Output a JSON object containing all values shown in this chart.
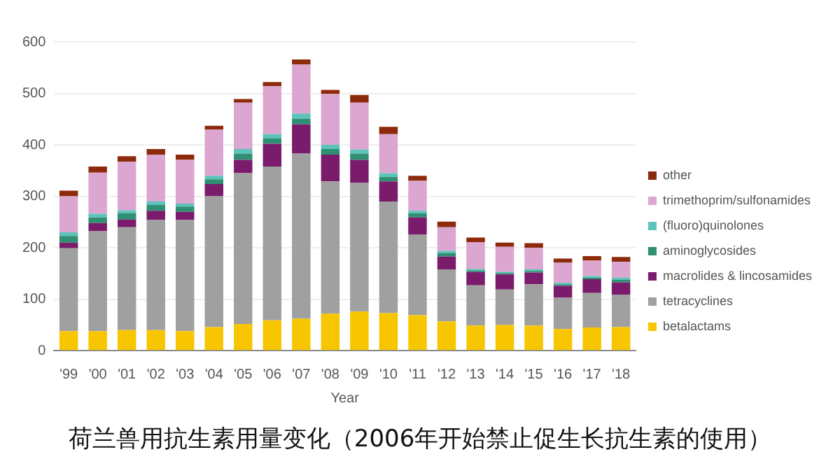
{
  "chart_data": {
    "type": "bar",
    "title": "荷兰兽用抗生素用量变化（2006年开始禁止促生长抗生素的使用）",
    "xlabel": "Year",
    "categories": [
      "'99",
      "'00",
      "'01",
      "'02",
      "'03",
      "'04",
      "'05",
      "'06",
      "'07",
      "'08",
      "'09",
      "'10",
      "'11",
      "'12",
      "'13",
      "'14",
      "'15",
      "'16",
      "'17",
      "'18"
    ],
    "stacked": true,
    "ylim": [
      0,
      600
    ],
    "yticks": [
      0,
      100,
      200,
      300,
      400,
      500,
      600
    ],
    "grid": "y",
    "legend": "right",
    "series": [
      {
        "name": "betalactams",
        "color": "#f7c600",
        "values": [
          38,
          38,
          40,
          40,
          38,
          46,
          52,
          59,
          62,
          72,
          76,
          73,
          69,
          57,
          49,
          50,
          49,
          42,
          45,
          46
        ]
      },
      {
        "name": "tetracyclines",
        "color": "#a0a0a0",
        "values": [
          161,
          194,
          200,
          214,
          216,
          254,
          293,
          299,
          321,
          257,
          250,
          217,
          157,
          101,
          78,
          69,
          80,
          61,
          67,
          63
        ]
      },
      {
        "name": "macrolides & lincosamides",
        "color": "#7a1b6c",
        "values": [
          11,
          16,
          15,
          18,
          16,
          24,
          26,
          44,
          57,
          52,
          45,
          39,
          33,
          25,
          26,
          29,
          23,
          23,
          27,
          24
        ]
      },
      {
        "name": "aminoglycosides",
        "color": "#2f8f73",
        "values": [
          13,
          11,
          12,
          11,
          10,
          9,
          12,
          11,
          11,
          11,
          12,
          9,
          8,
          7,
          3,
          3,
          3,
          3,
          3,
          5
        ]
      },
      {
        "name": "(fluoro)quinolones",
        "color": "#5cc3bb",
        "values": [
          7,
          7,
          6,
          7,
          6,
          7,
          9,
          8,
          10,
          8,
          8,
          7,
          5,
          4,
          3,
          2,
          3,
          3,
          3,
          4
        ]
      },
      {
        "name": "trimethoprim/sulfonamides",
        "color": "#dba6cf",
        "values": [
          70,
          80,
          94,
          91,
          85,
          90,
          90,
          93,
          95,
          99,
          91,
          76,
          58,
          46,
          52,
          49,
          42,
          39,
          30,
          31
        ]
      },
      {
        "name": "other",
        "color": "#8e2a0c",
        "values": [
          11,
          12,
          11,
          11,
          10,
          7,
          7,
          8,
          10,
          8,
          15,
          14,
          10,
          11,
          9,
          8,
          9,
          8,
          9,
          9
        ]
      }
    ]
  }
}
